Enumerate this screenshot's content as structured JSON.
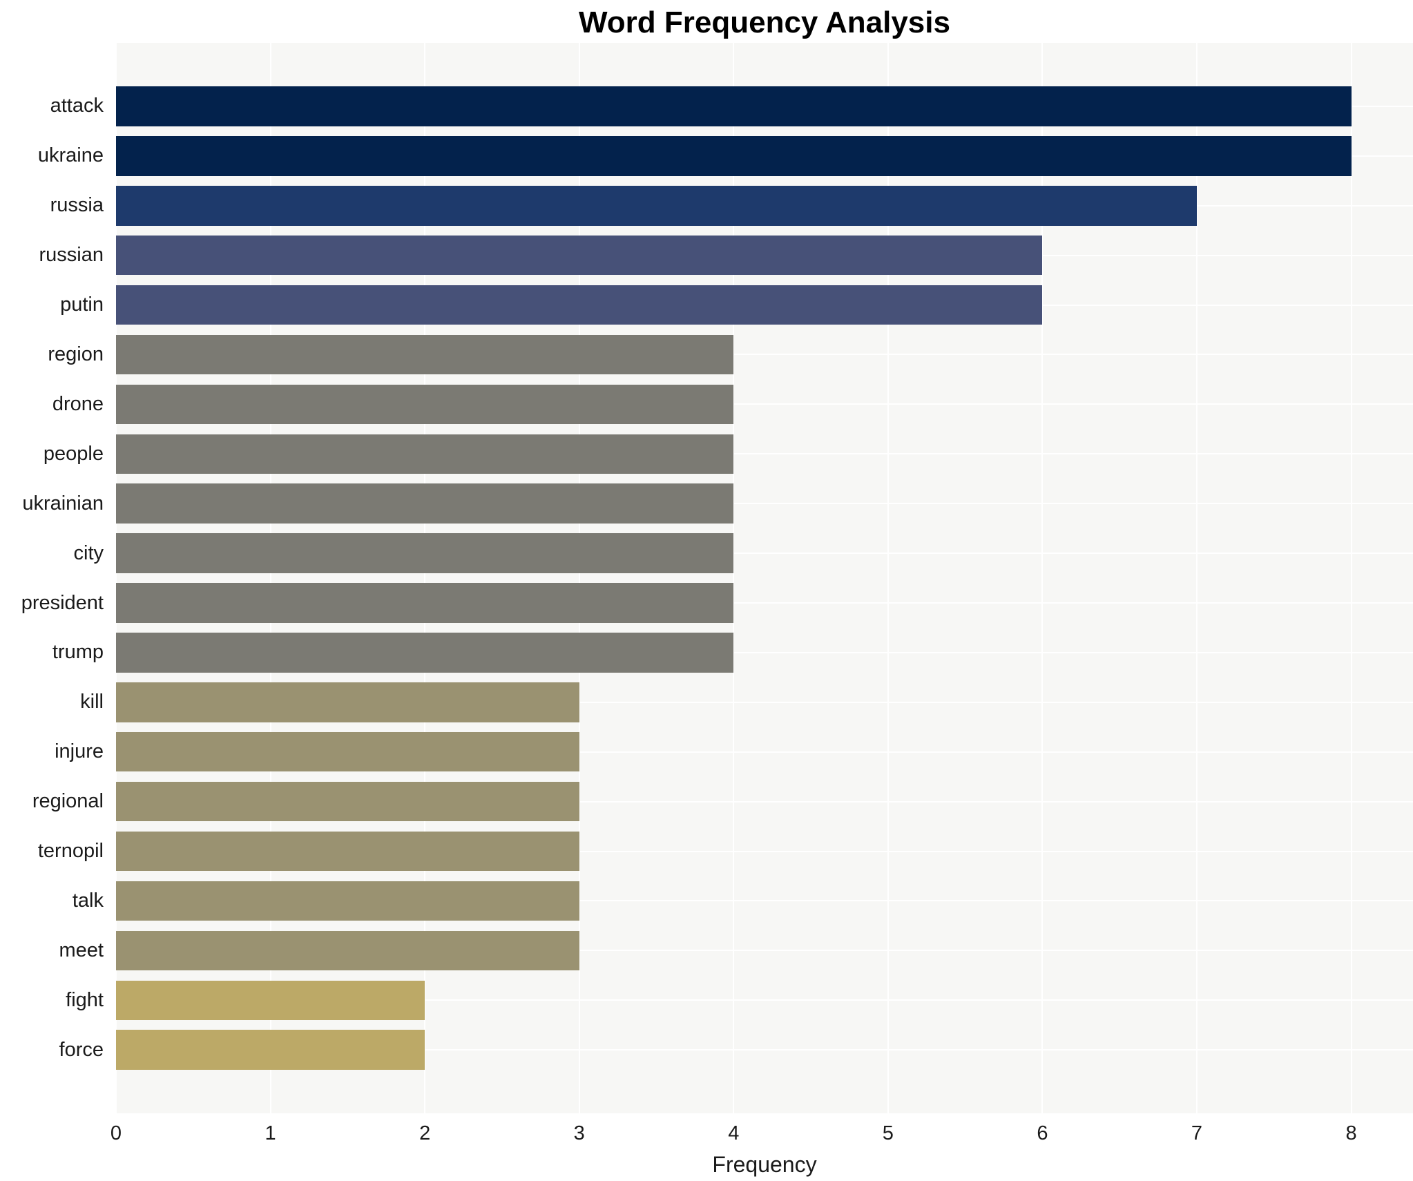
{
  "title": "Word Frequency Analysis",
  "x_axis": {
    "label": "Frequency",
    "ticks": [
      "0",
      "1",
      "2",
      "3",
      "4",
      "5",
      "6",
      "7",
      "8"
    ]
  },
  "chart_data": {
    "type": "bar",
    "orientation": "horizontal",
    "title": "Word Frequency Analysis",
    "xlabel": "Frequency",
    "ylabel": "",
    "categories": [
      "attack",
      "ukraine",
      "russia",
      "russian",
      "putin",
      "region",
      "drone",
      "people",
      "ukrainian",
      "city",
      "president",
      "trump",
      "kill",
      "injure",
      "regional",
      "ternopil",
      "talk",
      "meet",
      "fight",
      "force"
    ],
    "values": [
      8,
      8,
      7,
      6,
      6,
      4,
      4,
      4,
      4,
      4,
      4,
      4,
      3,
      3,
      3,
      3,
      3,
      3,
      2,
      2
    ],
    "xlim": [
      0,
      8.4
    ],
    "x_tick_values": [
      0,
      1,
      2,
      3,
      4,
      5,
      6,
      7,
      8
    ],
    "grid": true,
    "legend": "none",
    "plot_background": "#f7f7f5",
    "grid_color": "#ffffff",
    "text_color": "#1a1a1a",
    "colors_by_value": {
      "8": "#03224c",
      "7": "#1e3a6c",
      "6": "#475178",
      "4": "#7b7a73",
      "3": "#9a9271",
      "2": "#bca967"
    }
  }
}
